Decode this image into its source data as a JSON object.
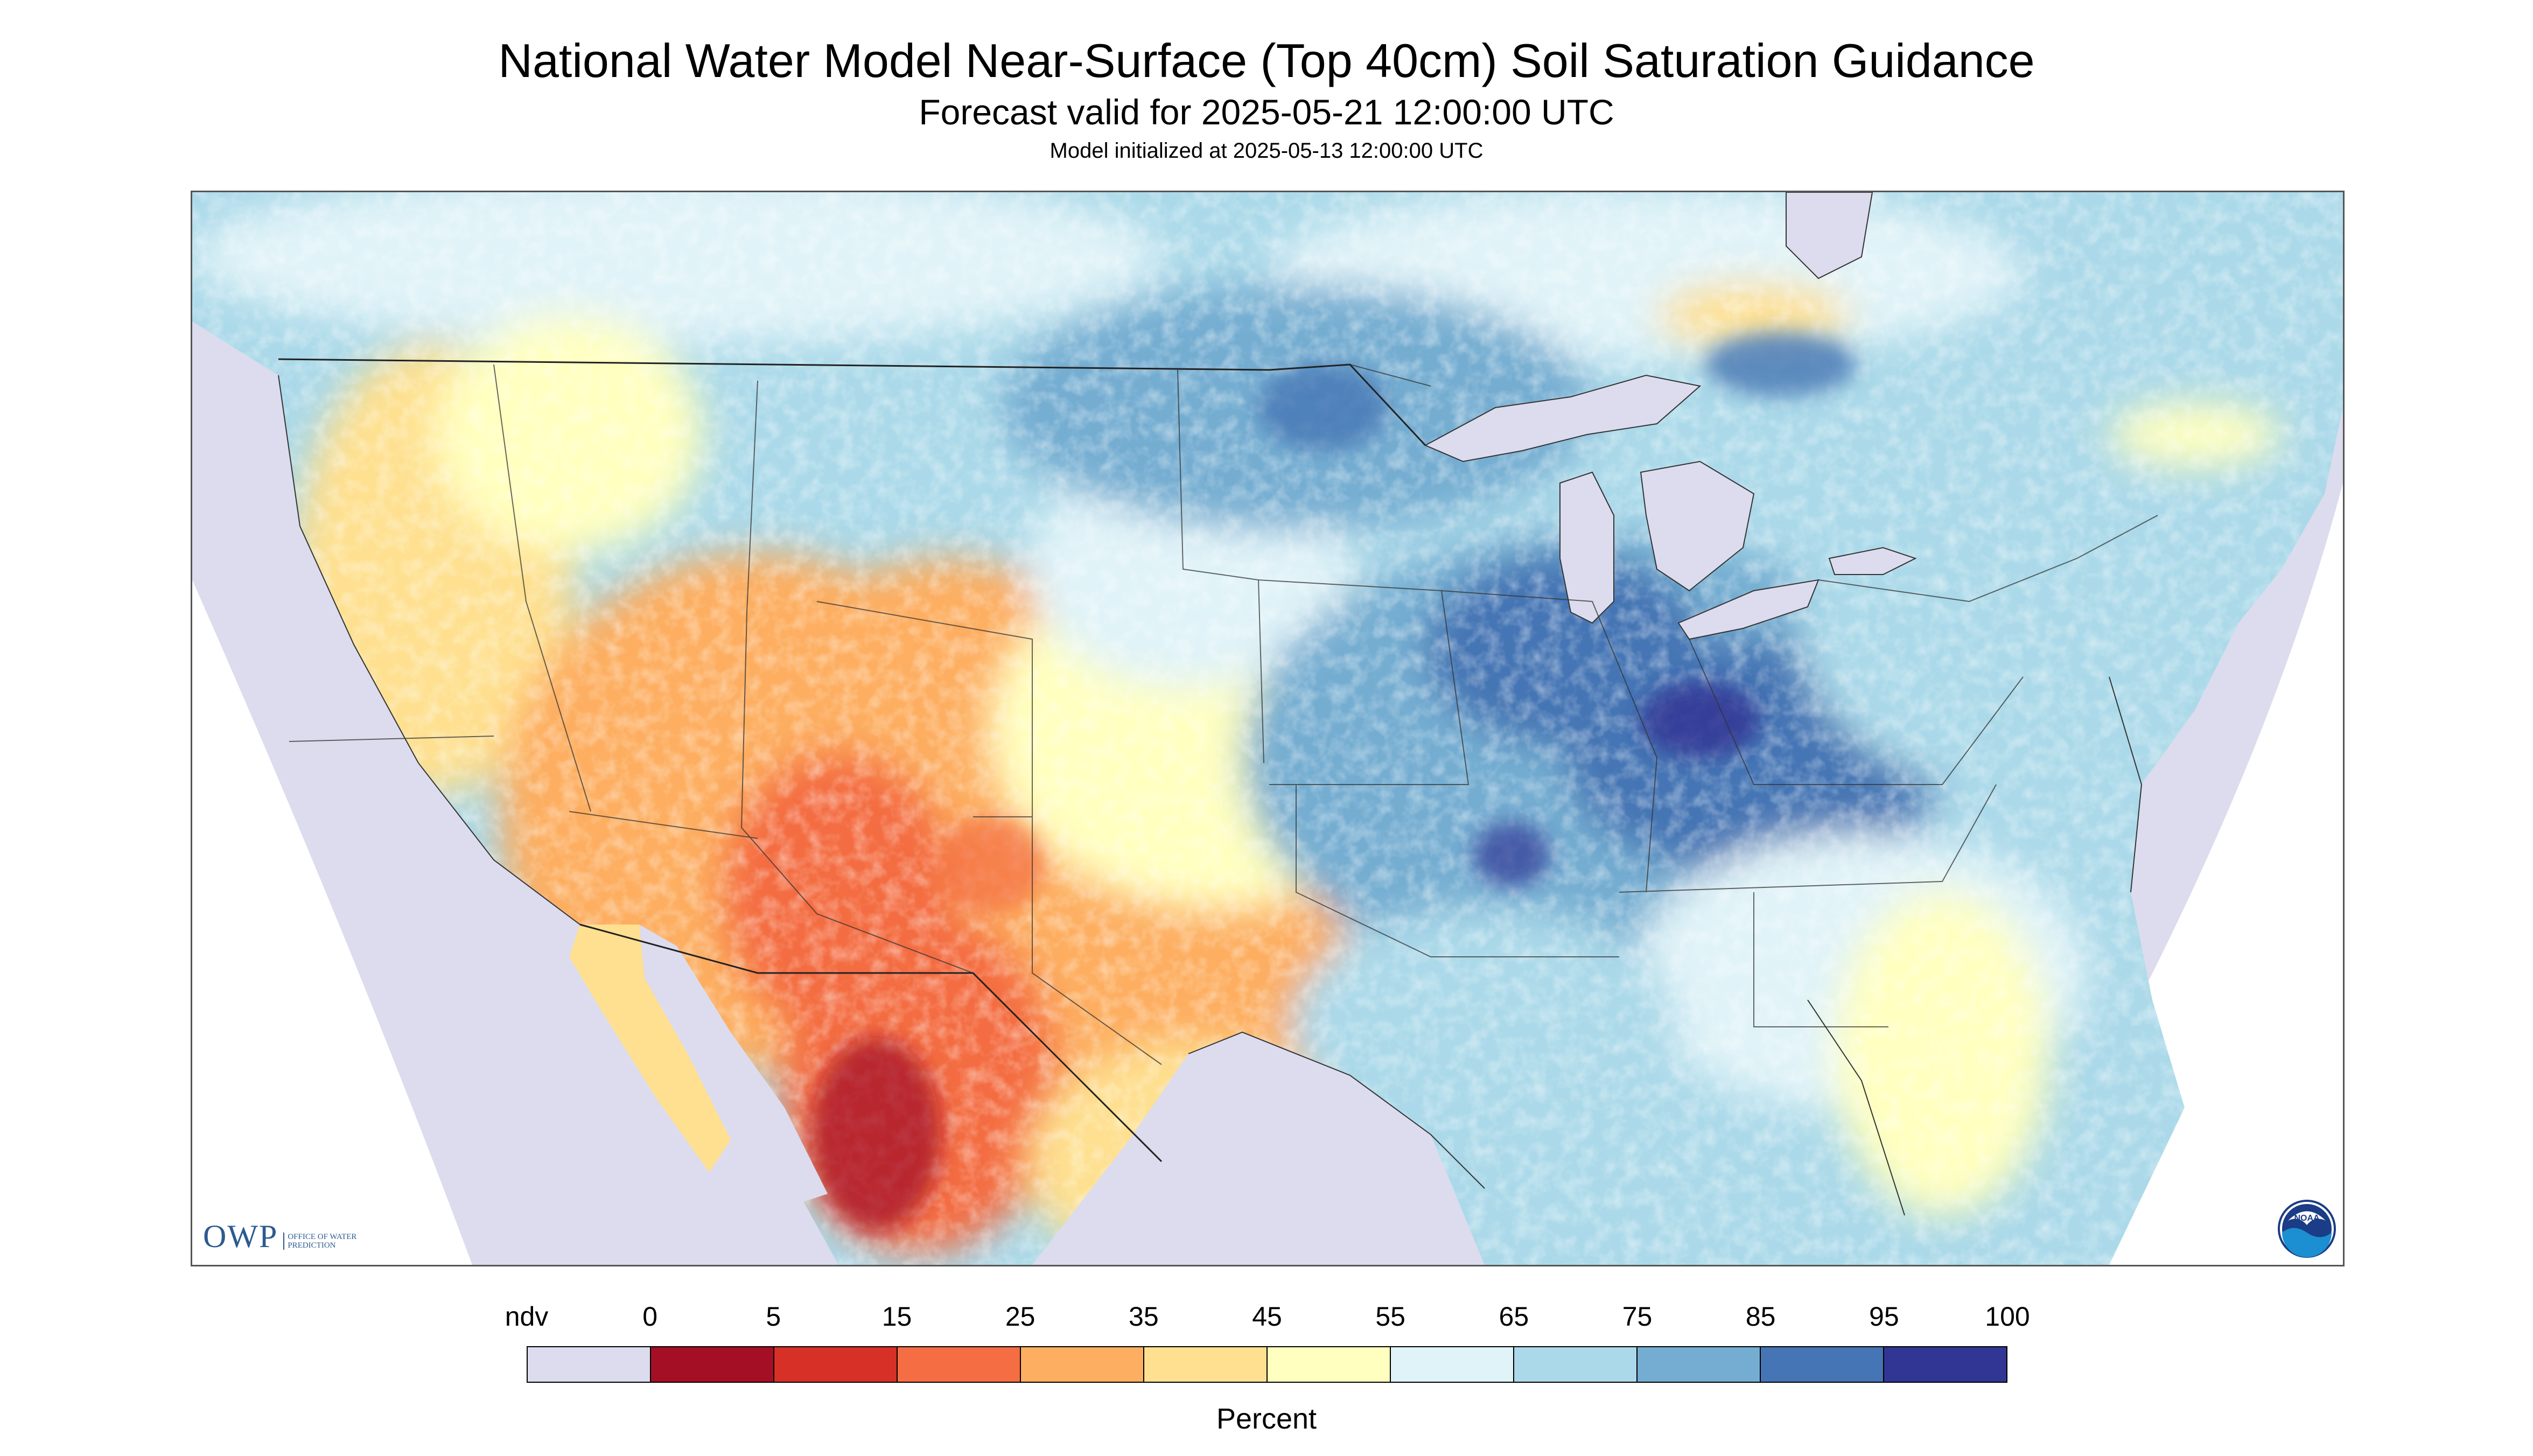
{
  "header": {
    "title": "National Water Model Near-Surface (Top 40cm) Soil Saturation Guidance",
    "forecast_valid": "Forecast valid for 2025-05-21 12:00:00 UTC",
    "model_initialized": "Model initialized at 2025-05-13 12:00:00 UTC"
  },
  "map": {
    "region": "Contiguous United States",
    "colors": {
      "nodata": "#dcdcee",
      "water": "#dcdcee",
      "background": "#ffffff"
    },
    "dominant_patterns": [
      {
        "region": "Southwest and northern Mexico",
        "class": "5-35"
      },
      {
        "region": "Great Plains",
        "class": "45-65"
      },
      {
        "region": "Midwest and Ohio Valley",
        "class": "75-95"
      },
      {
        "region": "Southeast coast",
        "class": "45-55"
      }
    ]
  },
  "logos": {
    "owp_text": "OWP",
    "owp_subtitle": "OFFICE OF WATER PREDICTION",
    "noaa_text": "NOAA",
    "noaa_icon": "noaa-logo-icon"
  },
  "legend": {
    "label": "Percent",
    "tick_labels": [
      "ndv",
      "0",
      "5",
      "15",
      "25",
      "35",
      "45",
      "55",
      "65",
      "75",
      "85",
      "95",
      "100"
    ],
    "classes": [
      {
        "range": "ndv",
        "color": "#dcdcee"
      },
      {
        "range": "0-5",
        "color": "#a50f26"
      },
      {
        "range": "5-15",
        "color": "#d73027"
      },
      {
        "range": "15-25",
        "color": "#f46d43"
      },
      {
        "range": "25-35",
        "color": "#fdae61"
      },
      {
        "range": "35-45",
        "color": "#fee090"
      },
      {
        "range": "45-55",
        "color": "#ffffbf"
      },
      {
        "range": "55-65",
        "color": "#e0f3f8"
      },
      {
        "range": "65-75",
        "color": "#abd9e9"
      },
      {
        "range": "75-85",
        "color": "#74add1"
      },
      {
        "range": "85-95",
        "color": "#4575b4"
      },
      {
        "range": "95-100",
        "color": "#313695"
      }
    ]
  }
}
